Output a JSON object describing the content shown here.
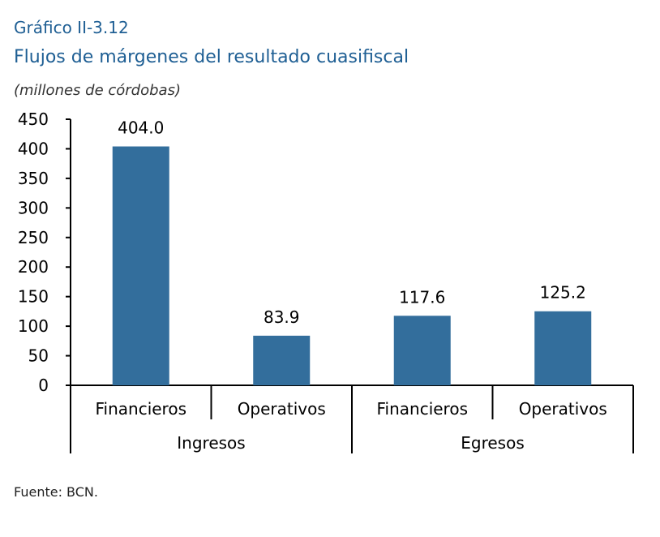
{
  "header": {
    "chart_number": "Gráfico II-3.12",
    "title": "Flujos de márgenes del resultado cuasifiscal",
    "subtitle": "(millones de córdobas)"
  },
  "footer": {
    "source": "Fuente: BCN."
  },
  "colors": {
    "bar": "#336e9c",
    "title": "#1f5f94"
  },
  "chart_data": {
    "type": "bar",
    "title": "Flujos de márgenes del resultado cuasifiscal",
    "ylabel": "(millones de córdobas)",
    "xlabel": "",
    "ylim": [
      0,
      450
    ],
    "yticks": [
      0,
      50,
      100,
      150,
      200,
      250,
      300,
      350,
      400,
      450
    ],
    "grid": false,
    "categories": [
      "Financieros",
      "Operativos",
      "Financieros",
      "Operativos"
    ],
    "groups": [
      {
        "label": "Ingresos",
        "categories": [
          "Financieros",
          "Operativos"
        ]
      },
      {
        "label": "Egresos",
        "categories": [
          "Financieros",
          "Operativos"
        ]
      }
    ],
    "values": [
      404.0,
      83.9,
      117.6,
      125.2
    ],
    "data_labels": [
      "404.0",
      "83.9",
      "117.6",
      "125.2"
    ]
  }
}
